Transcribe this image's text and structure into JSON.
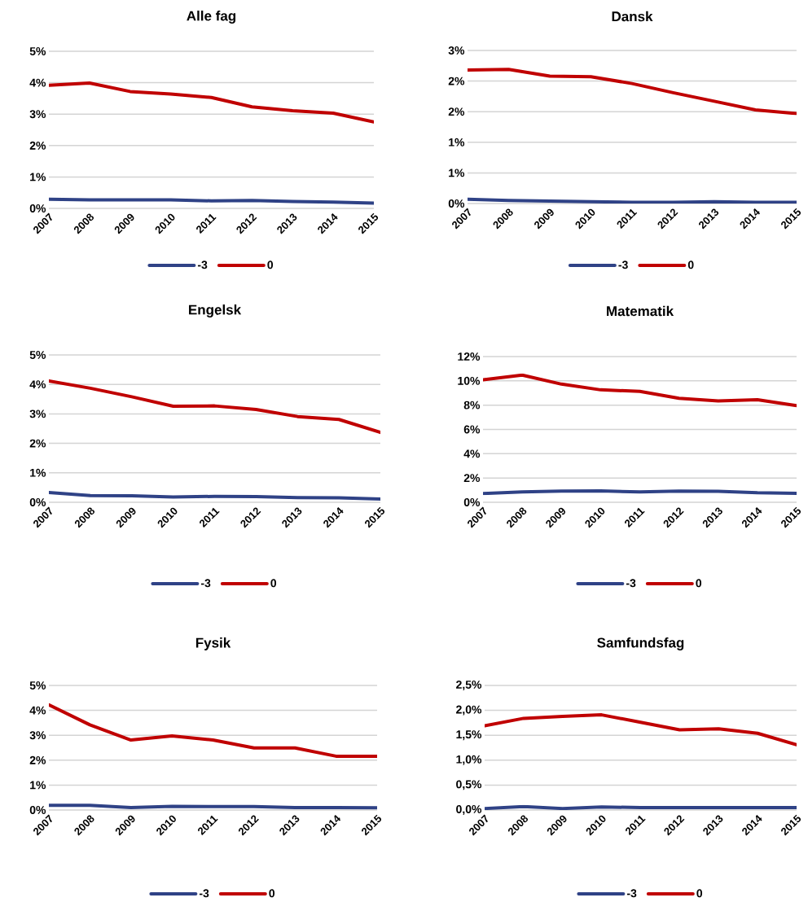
{
  "chart_data": [
    {
      "type": "line",
      "title": "Alle fag",
      "categories": [
        "2007",
        "2008",
        "2009",
        "2010",
        "2011",
        "2012",
        "2013",
        "2014",
        "2015"
      ],
      "ylim": [
        0,
        5
      ],
      "yticks": [
        {
          "value": 0,
          "label": "0%"
        },
        {
          "value": 1,
          "label": "1%"
        },
        {
          "value": 2,
          "label": "2%"
        },
        {
          "value": 3,
          "label": "3%"
        },
        {
          "value": 4,
          "label": "4%"
        },
        {
          "value": 5,
          "label": "5%"
        }
      ],
      "grid": "y",
      "legend": "bottom",
      "series": [
        {
          "name": "-3",
          "color": "#2f4286",
          "values": [
            0.29,
            0.27,
            0.27,
            0.27,
            0.24,
            0.25,
            0.22,
            0.2,
            0.17
          ]
        },
        {
          "name": "0",
          "color": "#c00000",
          "values": [
            3.92,
            3.99,
            3.72,
            3.64,
            3.53,
            3.23,
            3.11,
            3.03,
            2.75
          ]
        }
      ]
    },
    {
      "type": "line",
      "title": "Dansk",
      "categories": [
        "2007",
        "2008",
        "2009",
        "2010",
        "2011",
        "2012",
        "2013",
        "2014",
        "2015"
      ],
      "ylim": [
        0,
        2.5
      ],
      "yticks": [
        {
          "value": 0,
          "label": "0%"
        },
        {
          "value": 0.5,
          "label": "1%"
        },
        {
          "value": 1,
          "label": "1%"
        },
        {
          "value": 1.5,
          "label": "2%"
        },
        {
          "value": 2,
          "label": "2%"
        },
        {
          "value": 2.5,
          "label": "3%"
        }
      ],
      "grid": "y",
      "legend": "bottom",
      "series": [
        {
          "name": "-3",
          "color": "#2f4286",
          "values": [
            0.07,
            0.05,
            0.04,
            0.03,
            0.02,
            0.02,
            0.03,
            0.02,
            0.02
          ]
        },
        {
          "name": "0",
          "color": "#c00000",
          "values": [
            2.18,
            2.19,
            2.08,
            2.07,
            1.96,
            1.81,
            1.67,
            1.53,
            1.47
          ]
        }
      ]
    },
    {
      "type": "line",
      "title": "Engelsk",
      "categories": [
        "2007",
        "2008",
        "2009",
        "2010",
        "2011",
        "2012",
        "2013",
        "2014",
        "2015"
      ],
      "ylim": [
        0,
        5
      ],
      "yticks": [
        {
          "value": 0,
          "label": "0%"
        },
        {
          "value": 1,
          "label": "1%"
        },
        {
          "value": 2,
          "label": "2%"
        },
        {
          "value": 3,
          "label": "3%"
        },
        {
          "value": 4,
          "label": "4%"
        },
        {
          "value": 5,
          "label": "5%"
        }
      ],
      "grid": "y",
      "legend": "bottom",
      "series": [
        {
          "name": "-3",
          "color": "#2f4286",
          "values": [
            0.33,
            0.23,
            0.22,
            0.18,
            0.2,
            0.19,
            0.16,
            0.15,
            0.11
          ]
        },
        {
          "name": "0",
          "color": "#c00000",
          "values": [
            4.12,
            3.87,
            3.58,
            3.26,
            3.27,
            3.15,
            2.91,
            2.81,
            2.37
          ]
        }
      ]
    },
    {
      "type": "line",
      "title": "Matematik",
      "categories": [
        "2007",
        "2008",
        "2009",
        "2010",
        "2011",
        "2012",
        "2013",
        "2014",
        "2015"
      ],
      "ylim": [
        0,
        12
      ],
      "yticks": [
        {
          "value": 0,
          "label": "0%"
        },
        {
          "value": 2,
          "label": "2%"
        },
        {
          "value": 4,
          "label": "4%"
        },
        {
          "value": 6,
          "label": "6%"
        },
        {
          "value": 8,
          "label": "8%"
        },
        {
          "value": 10,
          "label": "10%"
        },
        {
          "value": 12,
          "label": "12%"
        }
      ],
      "grid": "y",
      "legend": "bottom",
      "series": [
        {
          "name": "-3",
          "color": "#2f4286",
          "values": [
            0.72,
            0.85,
            0.92,
            0.94,
            0.85,
            0.92,
            0.9,
            0.78,
            0.74
          ]
        },
        {
          "name": "0",
          "color": "#c00000",
          "values": [
            10.09,
            10.47,
            9.73,
            9.26,
            9.13,
            8.57,
            8.34,
            8.45,
            7.96
          ]
        }
      ]
    },
    {
      "type": "line",
      "title": "Fysik",
      "categories": [
        "2007",
        "2008",
        "2009",
        "2010",
        "2011",
        "2012",
        "2013",
        "2014",
        "2015"
      ],
      "ylim": [
        0,
        5
      ],
      "yticks": [
        {
          "value": 0,
          "label": "0%"
        },
        {
          "value": 1,
          "label": "1%"
        },
        {
          "value": 2,
          "label": "2%"
        },
        {
          "value": 3,
          "label": "3%"
        },
        {
          "value": 4,
          "label": "4%"
        },
        {
          "value": 5,
          "label": "5%"
        }
      ],
      "grid": "y",
      "legend": "bottom",
      "series": [
        {
          "name": "-3",
          "color": "#2f4286",
          "values": [
            0.19,
            0.19,
            0.1,
            0.15,
            0.14,
            0.14,
            0.1,
            0.1,
            0.09
          ]
        },
        {
          "name": "0",
          "color": "#c00000",
          "values": [
            4.22,
            3.42,
            2.81,
            2.97,
            2.81,
            2.49,
            2.49,
            2.16,
            2.16
          ]
        }
      ]
    },
    {
      "type": "line",
      "title": "Samfundsfag",
      "categories": [
        "2007",
        "2008",
        "2009",
        "2010",
        "2011",
        "2012",
        "2013",
        "2014",
        "2015"
      ],
      "ylim": [
        0,
        2.5
      ],
      "yticks": [
        {
          "value": 0,
          "label": "0,0%"
        },
        {
          "value": 0.5,
          "label": "0,5%"
        },
        {
          "value": 1,
          "label": "1,0%"
        },
        {
          "value": 1.5,
          "label": "1,5%"
        },
        {
          "value": 2,
          "label": "2,0%"
        },
        {
          "value": 2.5,
          "label": "2,5%"
        }
      ],
      "grid": "y",
      "legend": "bottom",
      "series": [
        {
          "name": "-3",
          "color": "#2f4286",
          "values": [
            0.03,
            0.07,
            0.03,
            0.06,
            0.05,
            0.05,
            0.05,
            0.05,
            0.05
          ]
        },
        {
          "name": "0",
          "color": "#c00000",
          "values": [
            1.69,
            1.84,
            1.88,
            1.91,
            1.76,
            1.61,
            1.63,
            1.54,
            1.31
          ]
        }
      ]
    }
  ]
}
